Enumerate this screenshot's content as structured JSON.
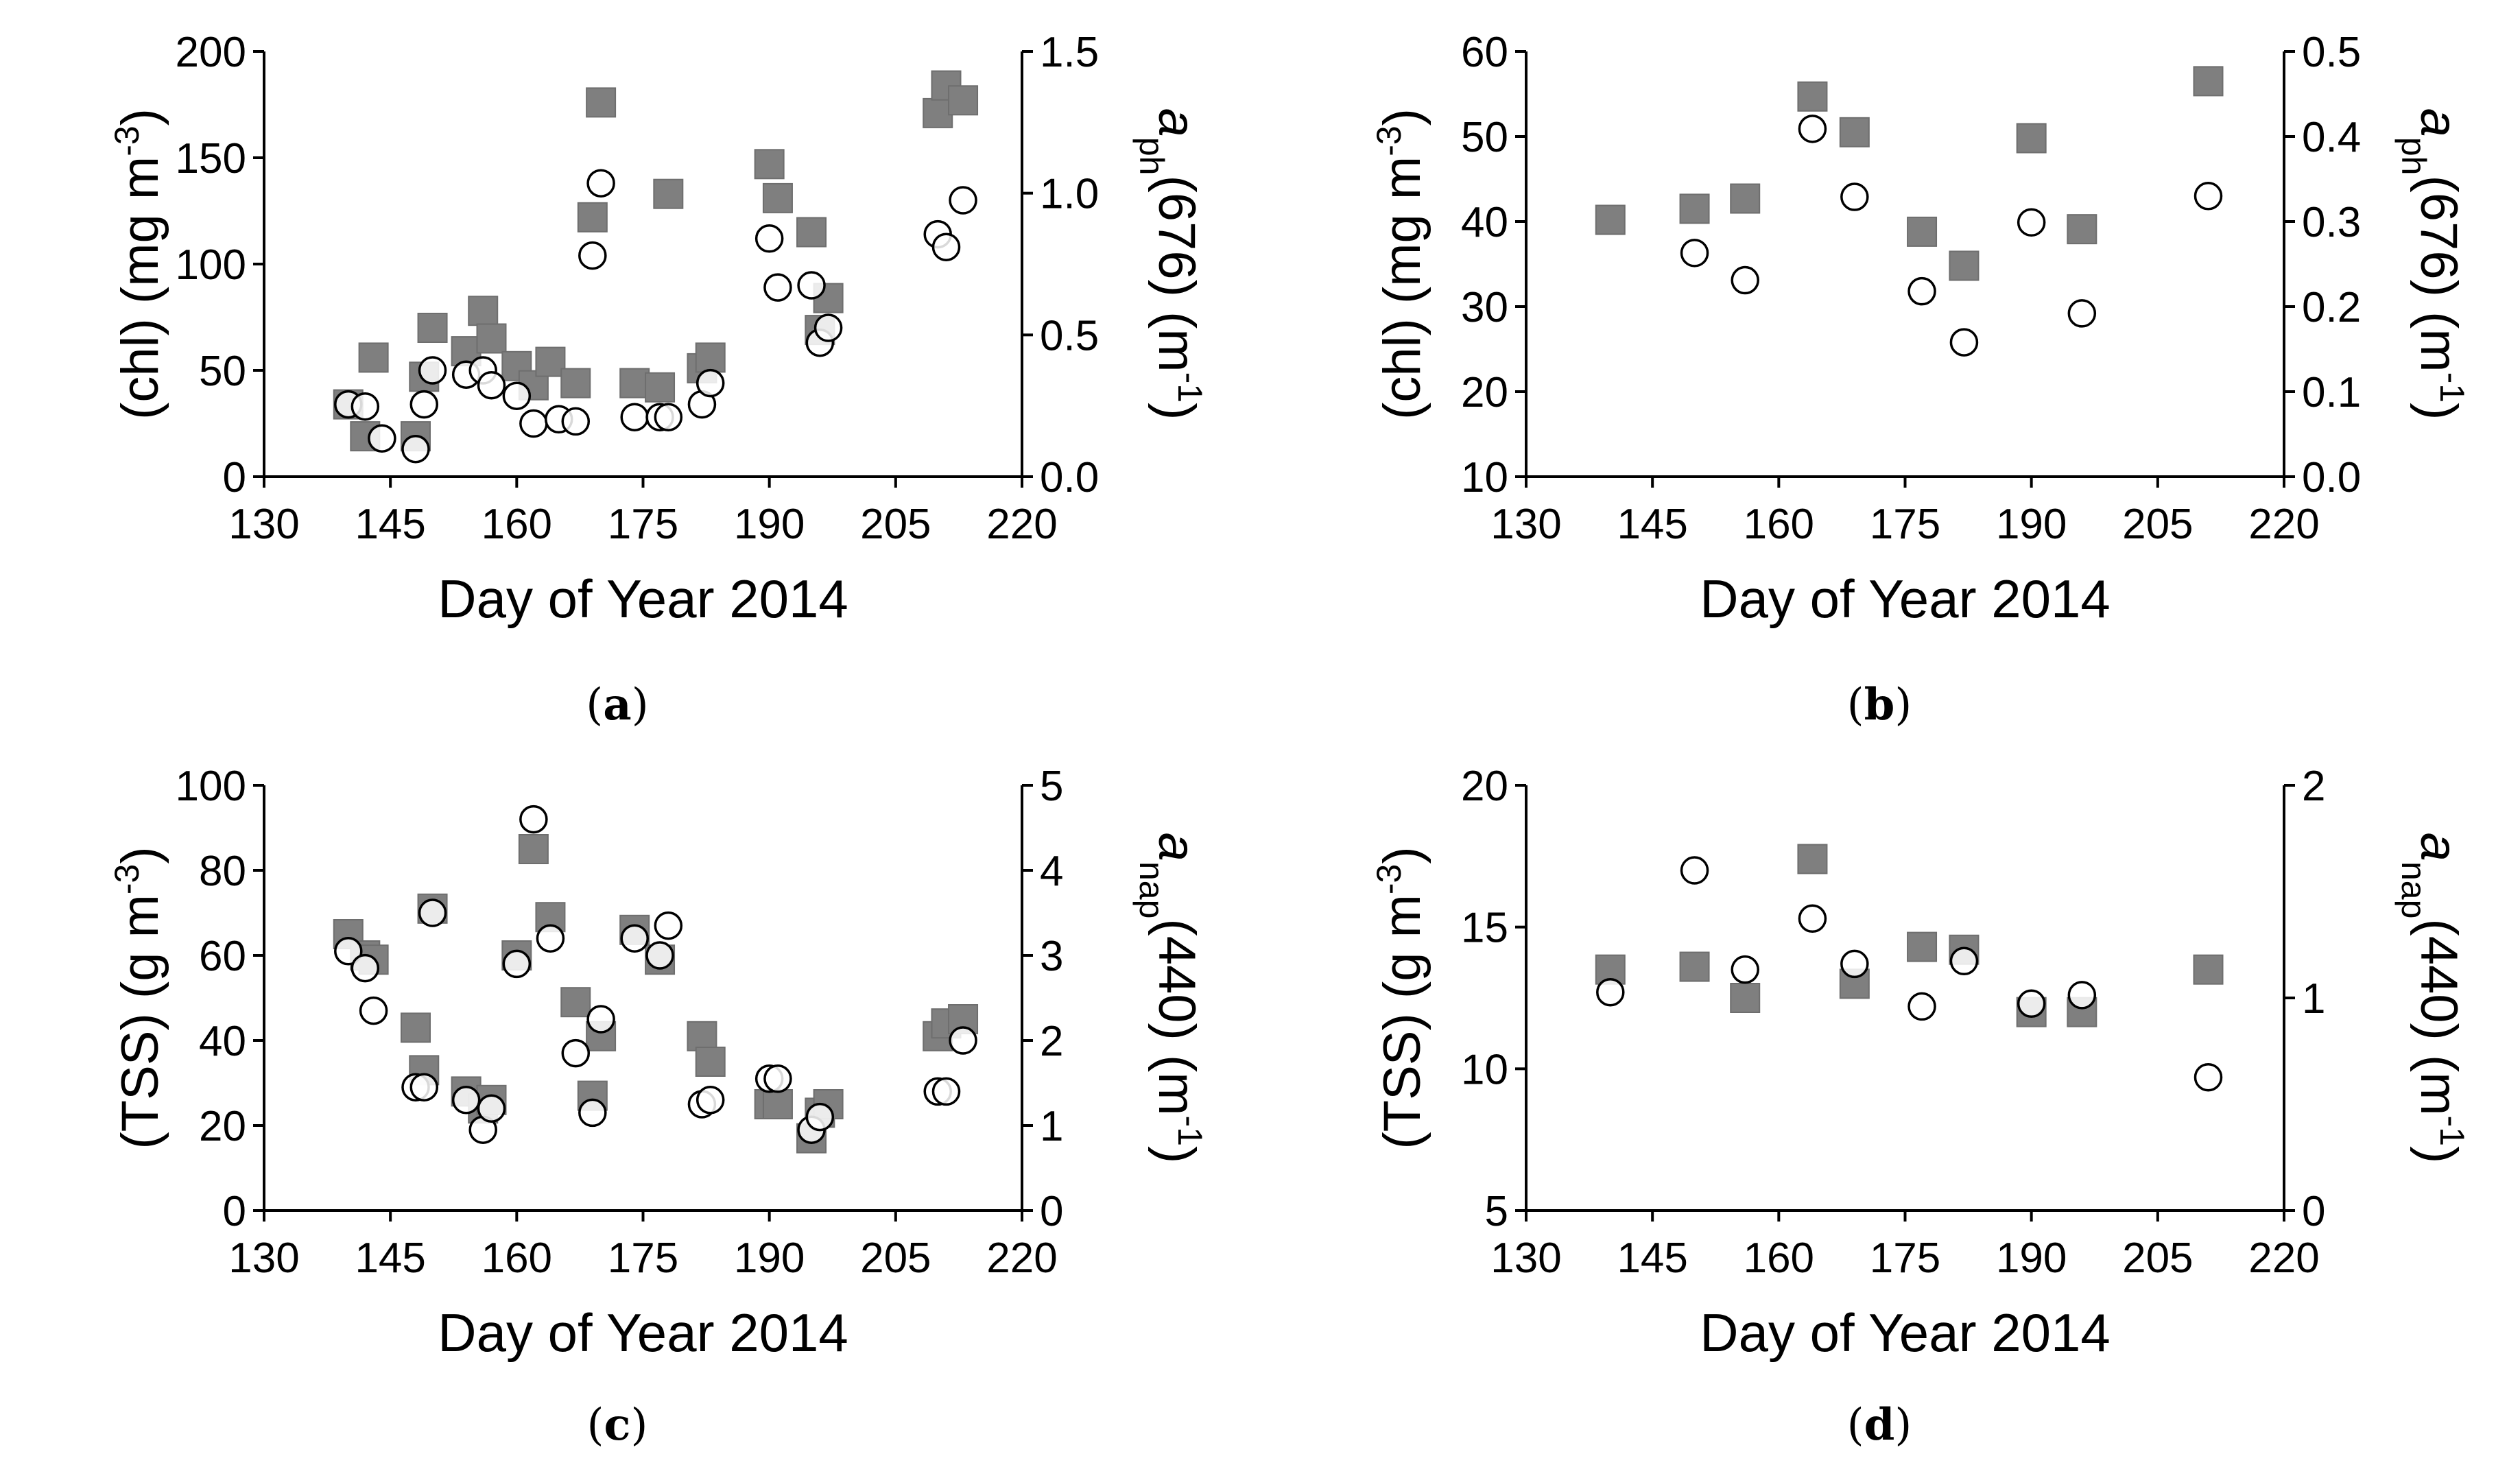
{
  "chart_data": [
    {
      "id": "a",
      "type": "scatter",
      "caption": "a",
      "xlabel": "Day of Year 2014",
      "xlim": [
        130,
        220
      ],
      "xticks": [
        "130",
        "145",
        "160",
        "175",
        "190",
        "205",
        "220"
      ],
      "ylabel_left": "(chl) (mg m-3)",
      "ylabel_left_main": "(chl) (mg m",
      "ylabel_left_sup": "-3",
      "ylabel_left_end": ")",
      "ylim_left": [
        0,
        200
      ],
      "yticks_left": [
        "0",
        "50",
        "100",
        "150",
        "200"
      ],
      "ylabel_right": "aph(676) (m-1)",
      "ylabel_right_a": "a",
      "ylabel_right_sub": "ph",
      "ylabel_right_mid": "(676) (m",
      "ylabel_right_sup": "-1",
      "ylabel_right_end": ")",
      "ylim_right": [
        0,
        1.5
      ],
      "yticks_right": [
        "0.0",
        "0.5",
        "1.0",
        "1.5"
      ],
      "series": [
        {
          "marker": "square-filled",
          "axis": "left",
          "points": [
            [
              140,
              34
            ],
            [
              142,
              19
            ],
            [
              143,
              56
            ],
            [
              148,
              19
            ],
            [
              149,
              47
            ],
            [
              150,
              70
            ],
            [
              154,
              59
            ],
            [
              156,
              78
            ],
            [
              157,
              65
            ],
            [
              160,
              52
            ],
            [
              162,
              43
            ],
            [
              164,
              54
            ],
            [
              167,
              44
            ],
            [
              169,
              122
            ],
            [
              170,
              176
            ],
            [
              174,
              44
            ],
            [
              177,
              42
            ],
            [
              178,
              133
            ],
            [
              182,
              51
            ],
            [
              183,
              56
            ],
            [
              190,
              147
            ],
            [
              191,
              131
            ],
            [
              195,
              115
            ],
            [
              196,
              69
            ],
            [
              197,
              84
            ],
            [
              210,
              171
            ],
            [
              211,
              184
            ],
            [
              213,
              177
            ]
          ]
        },
        {
          "marker": "circle-open",
          "axis": "left",
          "points": [
            [
              140,
              34
            ],
            [
              142,
              33
            ],
            [
              144,
              18
            ],
            [
              148,
              13
            ],
            [
              149,
              34
            ],
            [
              150,
              50
            ],
            [
              154,
              48
            ],
            [
              156,
              50
            ],
            [
              157,
              43
            ],
            [
              160,
              38
            ],
            [
              162,
              25
            ],
            [
              165,
              27
            ],
            [
              167,
              26
            ],
            [
              169,
              104
            ],
            [
              170,
              138
            ],
            [
              174,
              28
            ],
            [
              177,
              28
            ],
            [
              178,
              28
            ],
            [
              182,
              34
            ],
            [
              183,
              44
            ],
            [
              190,
              112
            ],
            [
              191,
              89
            ],
            [
              195,
              90
            ],
            [
              196,
              63
            ],
            [
              197,
              70
            ],
            [
              210,
              114
            ],
            [
              211,
              108
            ],
            [
              213,
              130
            ]
          ]
        }
      ]
    },
    {
      "id": "b",
      "type": "scatter",
      "caption": "b",
      "xlabel": "Day of Year 2014",
      "xlim": [
        130,
        220
      ],
      "xticks": [
        "130",
        "145",
        "160",
        "175",
        "190",
        "205",
        "220"
      ],
      "ylabel_left": "(chl) (mg m-3)",
      "ylabel_left_main": "(chl) (mg m",
      "ylabel_left_sup": "-3",
      "ylabel_left_end": ")",
      "ylim_left": [
        10,
        60
      ],
      "yticks_left": [
        "10",
        "20",
        "30",
        "40",
        "50",
        "60"
      ],
      "ylabel_right": "aph(676) (m-1)",
      "ylabel_right_a": "a",
      "ylabel_right_sub": "ph",
      "ylabel_right_mid": "(676) (m",
      "ylabel_right_sup": "-1",
      "ylabel_right_end": ")",
      "ylim_right": [
        0,
        0.5
      ],
      "yticks_right": [
        "0.0",
        "0.1",
        "0.2",
        "0.3",
        "0.4",
        "0.5"
      ],
      "series": [
        {
          "marker": "square-filled",
          "axis": "left",
          "points": [
            [
              140,
              40.2
            ],
            [
              150,
              41.5
            ],
            [
              156,
              42.7
            ],
            [
              164,
              54.7
            ],
            [
              169,
              50.5
            ],
            [
              177,
              38.8
            ],
            [
              182,
              34.8
            ],
            [
              190,
              49.8
            ],
            [
              196,
              39.1
            ],
            [
              211,
              56.5
            ]
          ]
        },
        {
          "marker": "circle-open",
          "axis": "left",
          "points": [
            [
              150,
              36.3
            ],
            [
              156,
              33.1
            ],
            [
              164,
              50.9
            ],
            [
              169,
              42.9
            ],
            [
              177,
              31.8
            ],
            [
              182,
              25.8
            ],
            [
              190,
              39.9
            ],
            [
              196,
              29.2
            ],
            [
              211,
              43.0
            ]
          ]
        }
      ]
    },
    {
      "id": "c",
      "type": "scatter",
      "caption": "c",
      "xlabel": "Day of Year 2014",
      "xlim": [
        130,
        220
      ],
      "xticks": [
        "130",
        "145",
        "160",
        "175",
        "190",
        "205",
        "220"
      ],
      "ylabel_left": "(TSS) (g m-3)",
      "ylabel_left_main": "(TSS) (g m",
      "ylabel_left_sup": "-3",
      "ylabel_left_end": ")",
      "ylim_left": [
        0,
        100
      ],
      "yticks_left": [
        "0",
        "20",
        "40",
        "60",
        "80",
        "100"
      ],
      "ylabel_right": "anap(440) (m-1)",
      "ylabel_right_a": "a",
      "ylabel_right_sub": "nap",
      "ylabel_right_mid": "(440) (m",
      "ylabel_right_sup": "-1",
      "ylabel_right_end": ")",
      "ylim_right": [
        0,
        5
      ],
      "yticks_right": [
        "0",
        "1",
        "2",
        "3",
        "4",
        "5"
      ],
      "series": [
        {
          "marker": "square-filled",
          "axis": "left",
          "points": [
            [
              140,
              65
            ],
            [
              142,
              60
            ],
            [
              143,
              59
            ],
            [
              148,
              43
            ],
            [
              149,
              33
            ],
            [
              150,
              71
            ],
            [
              154,
              28
            ],
            [
              156,
              24
            ],
            [
              157,
              26
            ],
            [
              160,
              60
            ],
            [
              162,
              85
            ],
            [
              164,
              69
            ],
            [
              167,
              49
            ],
            [
              169,
              27
            ],
            [
              170,
              41
            ],
            [
              174,
              66
            ],
            [
              177,
              59
            ],
            [
              182,
              41
            ],
            [
              183,
              35
            ],
            [
              190,
              25
            ],
            [
              191,
              25
            ],
            [
              195,
              17
            ],
            [
              196,
              23
            ],
            [
              197,
              25
            ],
            [
              210,
              41
            ],
            [
              211,
              44
            ],
            [
              213,
              45
            ]
          ]
        },
        {
          "marker": "circle-open",
          "axis": "left",
          "points": [
            [
              140,
              61
            ],
            [
              142,
              57
            ],
            [
              143,
              47
            ],
            [
              148,
              29
            ],
            [
              149,
              29
            ],
            [
              150,
              70
            ],
            [
              154,
              26
            ],
            [
              156,
              19
            ],
            [
              157,
              24
            ],
            [
              160,
              58
            ],
            [
              162,
              92
            ],
            [
              164,
              64
            ],
            [
              167,
              37
            ],
            [
              169,
              23
            ],
            [
              170,
              45
            ],
            [
              174,
              64
            ],
            [
              177,
              60
            ],
            [
              178,
              67
            ],
            [
              182,
              25
            ],
            [
              183,
              26
            ],
            [
              190,
              31
            ],
            [
              191,
              31
            ],
            [
              195,
              19
            ],
            [
              196,
              22
            ],
            [
              210,
              28
            ],
            [
              211,
              28
            ],
            [
              213,
              40
            ]
          ]
        }
      ]
    },
    {
      "id": "d",
      "type": "scatter",
      "caption": "d",
      "xlabel": "Day of Year 2014",
      "xlim": [
        130,
        220
      ],
      "xticks": [
        "130",
        "145",
        "160",
        "175",
        "190",
        "205",
        "220"
      ],
      "ylabel_left": "(TSS) (g m-3)",
      "ylabel_left_main": "(TSS) (g m",
      "ylabel_left_sup": "-3",
      "ylabel_left_end": ")",
      "ylim_left": [
        5,
        20
      ],
      "yticks_left": [
        "5",
        "10",
        "15",
        "20"
      ],
      "ylabel_right": "anap(440) (m-1)",
      "ylabel_right_a": "a",
      "ylabel_right_sub": "nap",
      "ylabel_right_mid": "(440) (m",
      "ylabel_right_sup": "-1",
      "ylabel_right_end": ")",
      "ylim_right": [
        0,
        2
      ],
      "yticks_right": [
        "0",
        "1",
        "2"
      ],
      "series": [
        {
          "marker": "square-filled",
          "axis": "left",
          "points": [
            [
              140,
              13.5
            ],
            [
              150,
              13.6
            ],
            [
              156,
              12.5
            ],
            [
              164,
              17.4
            ],
            [
              169,
              13.0
            ],
            [
              177,
              14.3
            ],
            [
              182,
              14.2
            ],
            [
              190,
              12.0
            ],
            [
              196,
              12.0
            ],
            [
              211,
              13.5
            ]
          ]
        },
        {
          "marker": "circle-open",
          "axis": "left",
          "points": [
            [
              140,
              12.7
            ],
            [
              150,
              17.0
            ],
            [
              156,
              13.5
            ],
            [
              164,
              15.3
            ],
            [
              169,
              13.7
            ],
            [
              177,
              12.2
            ],
            [
              182,
              13.8
            ],
            [
              190,
              12.3
            ],
            [
              196,
              12.6
            ],
            [
              211,
              9.7
            ]
          ]
        }
      ]
    }
  ]
}
